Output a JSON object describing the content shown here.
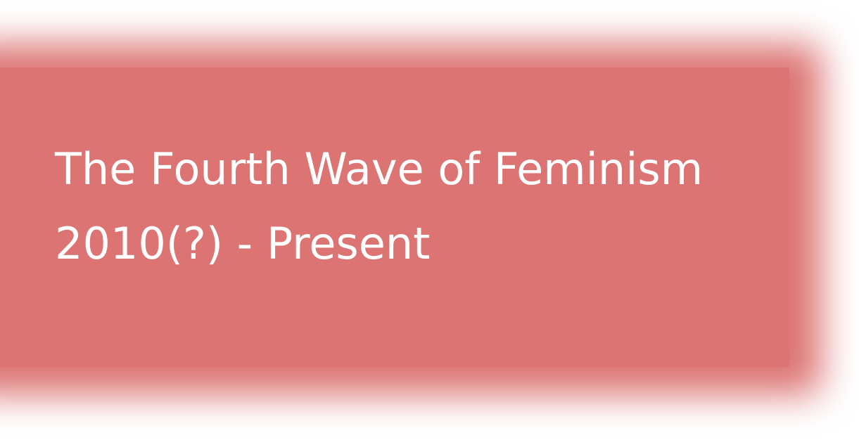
{
  "banner": {
    "title": "The Fourth Wave of Feminism",
    "subtitle": "2010(?) - Present",
    "background_color": "#db7472",
    "text_color": "#ffffff"
  }
}
